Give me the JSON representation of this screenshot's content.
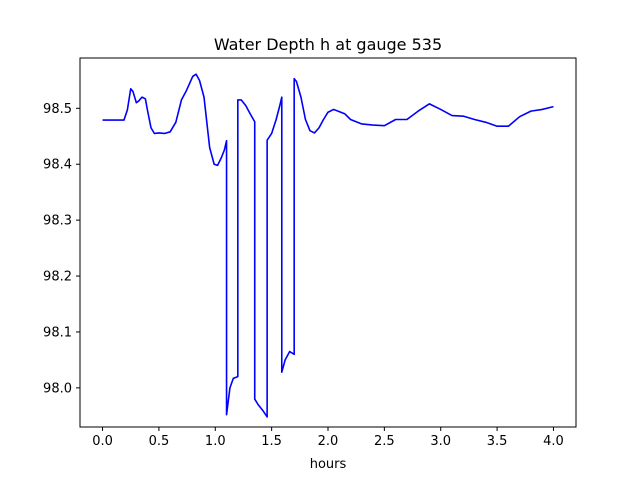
{
  "chart_data": {
    "type": "line",
    "title": "Water Depth h at gauge 535",
    "xlabel": "hours",
    "ylabel": "",
    "xlim": [
      -0.2,
      4.2
    ],
    "ylim": [
      97.93,
      98.59
    ],
    "xticks": [
      0.0,
      0.5,
      1.0,
      1.5,
      2.0,
      2.5,
      3.0,
      3.5,
      4.0
    ],
    "xtick_labels": [
      "0.0",
      "0.5",
      "1.0",
      "1.5",
      "2.0",
      "2.5",
      "3.0",
      "3.5",
      "4.0"
    ],
    "yticks": [
      98.0,
      98.1,
      98.2,
      98.3,
      98.4,
      98.5
    ],
    "ytick_labels": [
      "98.0",
      "98.1",
      "98.2",
      "98.3",
      "98.4",
      "98.5"
    ],
    "grid": false,
    "series": [
      {
        "color": "#0000ff",
        "x": [
          0.0,
          0.1,
          0.19,
          0.22,
          0.25,
          0.27,
          0.3,
          0.32,
          0.35,
          0.38,
          0.4,
          0.43,
          0.46,
          0.5,
          0.55,
          0.6,
          0.65,
          0.7,
          0.74,
          0.8,
          0.83,
          0.86,
          0.9,
          0.95,
          0.99,
          1.02,
          1.05,
          1.08,
          1.1,
          1.1,
          1.13,
          1.16,
          1.2,
          1.2,
          1.23,
          1.27,
          1.31,
          1.35,
          1.35,
          1.38,
          1.42,
          1.46,
          1.46,
          1.5,
          1.54,
          1.57,
          1.59,
          1.59,
          1.62,
          1.66,
          1.7,
          1.7,
          1.72,
          1.76,
          1.8,
          1.84,
          1.88,
          1.92,
          1.96,
          2.0,
          2.05,
          2.1,
          2.15,
          2.2,
          2.3,
          2.4,
          2.5,
          2.6,
          2.7,
          2.8,
          2.9,
          3.0,
          3.1,
          3.2,
          3.3,
          3.4,
          3.5,
          3.6,
          3.7,
          3.8,
          3.9,
          4.0
        ],
        "y": [
          98.479,
          98.479,
          98.479,
          98.497,
          98.535,
          98.53,
          98.51,
          98.513,
          98.52,
          98.517,
          98.495,
          98.465,
          98.455,
          98.456,
          98.455,
          98.458,
          98.475,
          98.515,
          98.53,
          98.557,
          98.561,
          98.55,
          98.52,
          98.43,
          98.4,
          98.398,
          98.41,
          98.425,
          98.442,
          97.952,
          98.0,
          98.017,
          98.02,
          98.515,
          98.515,
          98.505,
          98.49,
          98.476,
          97.98,
          97.97,
          97.96,
          97.948,
          98.443,
          98.455,
          98.48,
          98.503,
          98.52,
          98.028,
          98.05,
          98.065,
          98.06,
          98.553,
          98.548,
          98.52,
          98.48,
          98.46,
          98.456,
          98.465,
          98.48,
          98.493,
          98.498,
          98.494,
          98.49,
          98.48,
          98.472,
          98.47,
          98.469,
          98.48,
          98.48,
          98.495,
          98.508,
          98.498,
          98.487,
          98.486,
          98.48,
          98.475,
          98.468,
          98.468,
          98.485,
          98.495,
          98.498,
          98.503
        ]
      }
    ]
  }
}
